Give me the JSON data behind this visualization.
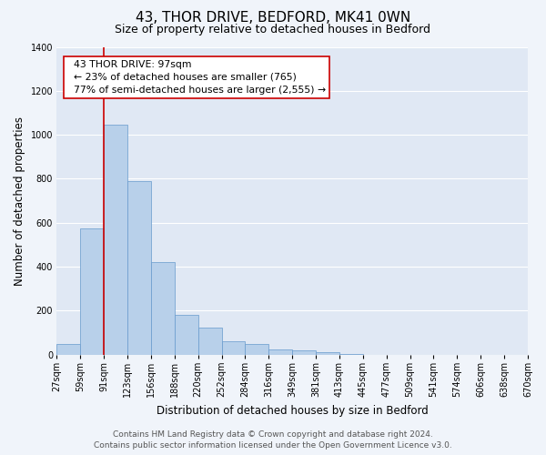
{
  "title": "43, THOR DRIVE, BEDFORD, MK41 0WN",
  "subtitle": "Size of property relative to detached houses in Bedford",
  "xlabel": "Distribution of detached houses by size in Bedford",
  "ylabel": "Number of detached properties",
  "bar_values": [
    50,
    575,
    1045,
    790,
    420,
    180,
    125,
    62,
    50,
    25,
    20,
    10,
    5,
    0,
    0,
    0,
    0,
    0,
    0,
    0
  ],
  "categories": [
    "27sqm",
    "59sqm",
    "91sqm",
    "123sqm",
    "156sqm",
    "188sqm",
    "220sqm",
    "252sqm",
    "284sqm",
    "316sqm",
    "349sqm",
    "381sqm",
    "413sqm",
    "445sqm",
    "477sqm",
    "509sqm",
    "541sqm",
    "574sqm",
    "606sqm",
    "638sqm",
    "670sqm"
  ],
  "bar_color": "#b8d0ea",
  "bar_edge_color": "#6699cc",
  "vline_x": 2,
  "vline_color": "#cc0000",
  "ylim": [
    0,
    1400
  ],
  "yticks": [
    0,
    200,
    400,
    600,
    800,
    1000,
    1200,
    1400
  ],
  "annotation_title": "43 THOR DRIVE: 97sqm",
  "annotation_line1": "← 23% of detached houses are smaller (765)",
  "annotation_line2": "77% of semi-detached houses are larger (2,555) →",
  "annotation_box_color": "#ffffff",
  "annotation_box_edge_color": "#cc0000",
  "footer_line1": "Contains HM Land Registry data © Crown copyright and database right 2024.",
  "footer_line2": "Contains public sector information licensed under the Open Government Licence v3.0.",
  "background_color": "#f0f4fa",
  "plot_bg_color": "#e0e8f4",
  "grid_color": "#ffffff",
  "title_fontsize": 11,
  "subtitle_fontsize": 9,
  "axis_label_fontsize": 8.5,
  "tick_fontsize": 7,
  "footer_fontsize": 6.5,
  "annotation_fontsize": 7.8
}
